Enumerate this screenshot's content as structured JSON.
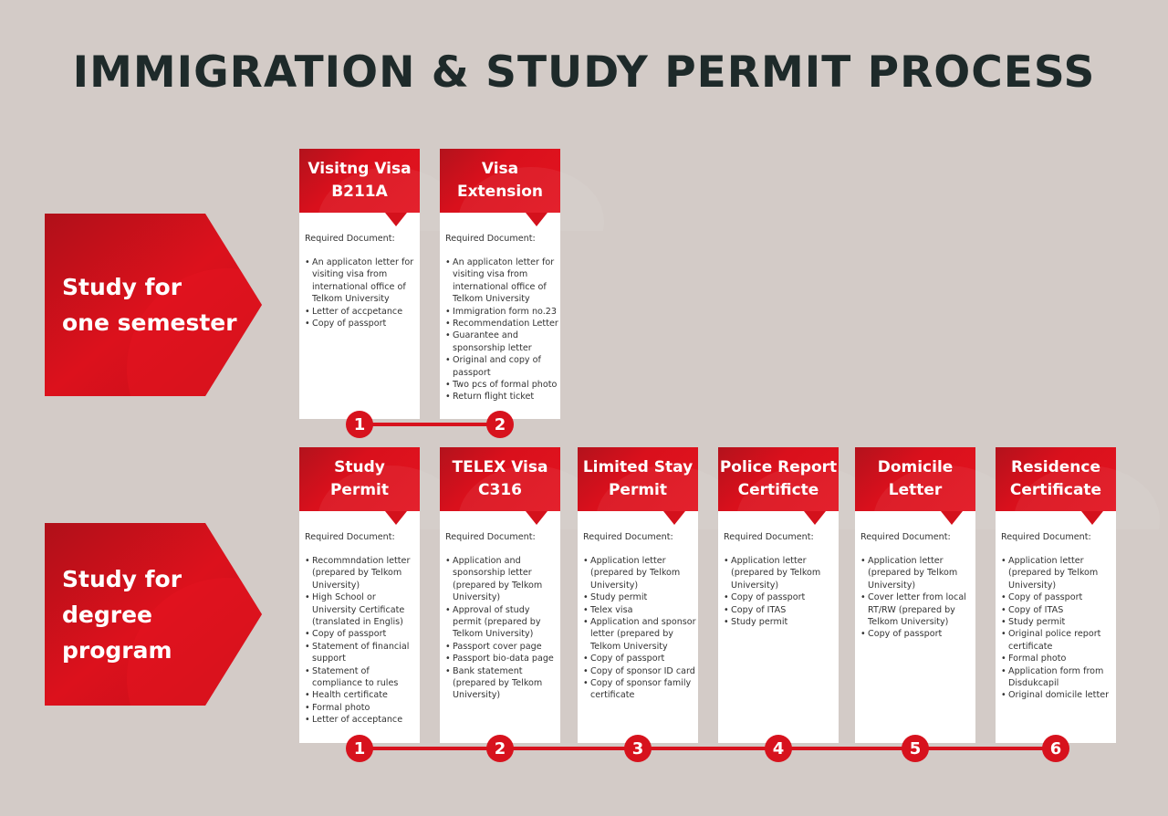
{
  "title": "IMMIGRATION & STUDY PERMIT PROCESS",
  "colors": {
    "accent": "#d7121d",
    "background": "#d3cbc7",
    "title": "#1e2a2a"
  },
  "rows": [
    {
      "label": "Study for\none semester",
      "steps": [
        {
          "number": "1",
          "title": "Visitng Visa\nB211A",
          "required_label": "Required Document:",
          "items": [
            "An applicaton letter for visiting visa from international office of Telkom University",
            "Letter of accpetance",
            "Copy of passport"
          ]
        },
        {
          "number": "2",
          "title": "Visa\nExtension",
          "required_label": "Required Document:",
          "items": [
            "An applicaton letter for visiting visa from international office of Telkom University",
            "Immigration form no.23",
            "Recommendation Letter",
            "Guarantee and sponsorship letter",
            "Original and copy of passport",
            "Two pcs of formal photo",
            "Return flight ticket"
          ]
        }
      ]
    },
    {
      "label": "Study for\ndegree\nprogram",
      "steps": [
        {
          "number": "1",
          "title": "Study\nPermit",
          "required_label": "Required Document:",
          "items": [
            "Recommndation letter (prepared by Telkom University)",
            "High School or University Certificate (translated in Englis)",
            "Copy of passport",
            "Statement of financial support",
            "Statement of compliance to rules",
            "Health certificate",
            "Formal photo",
            "Letter of acceptance"
          ]
        },
        {
          "number": "2",
          "title": "TELEX Visa\nC316",
          "required_label": "Required Document:",
          "items": [
            "Application and sponsorship letter (prepared by Telkom University)",
            "Approval of study permit (prepared by Telkom University)",
            "Passport cover page",
            "Passport bio-data page",
            "Bank statement (prepared by Telkom University)"
          ]
        },
        {
          "number": "3",
          "title": "Limited Stay\nPermit",
          "required_label": "Required Document:",
          "items": [
            "Application letter (prepared by Telkom University)",
            "Study permit",
            "Telex visa",
            "Application and sponsor letter (prepared by Telkom University",
            "Copy of passport",
            "Copy of sponsor ID card",
            "Copy of sponsor family certificate"
          ]
        },
        {
          "number": "4",
          "title": "Police Report\nCertificte",
          "required_label": "Required Document:",
          "items": [
            "Application letter (prepared by Telkom University)",
            "Copy of passport",
            "Copy of ITAS",
            "Study permit"
          ]
        },
        {
          "number": "5",
          "title": "Domicile\nLetter",
          "required_label": "Required Document:",
          "items": [
            "Application letter (prepared by Telkom University)",
            "Cover letter from local RT/RW (prepared by Telkom University)",
            "Copy of passport"
          ]
        },
        {
          "number": "6",
          "title": "Residence\nCertificate",
          "required_label": "Required Document:",
          "items": [
            "Application letter (prepared by Telkom University)",
            "Copy of passport",
            "Copy of ITAS",
            "Study permit",
            "Original police report certificate",
            "Formal photo",
            "Application form from Disdukcapil",
            "Original domicile letter"
          ]
        }
      ]
    }
  ]
}
